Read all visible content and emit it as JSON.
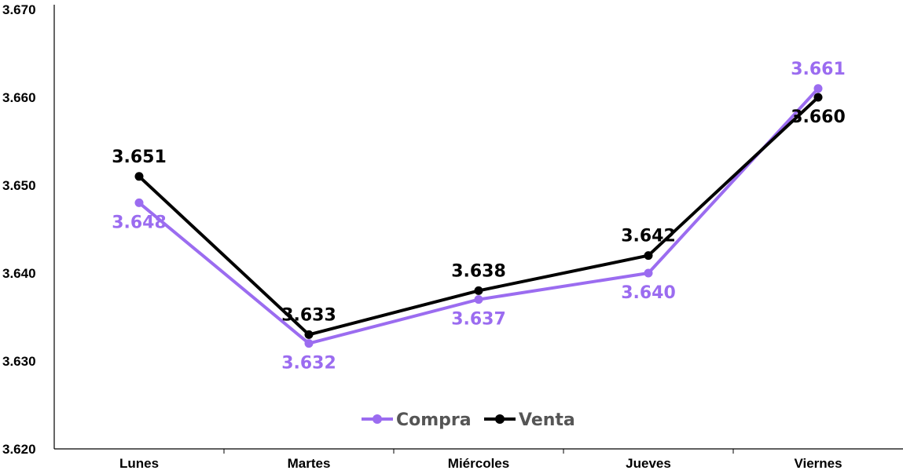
{
  "chart_data": {
    "type": "line",
    "categories": [
      "Lunes",
      "Martes",
      "Miércoles",
      "Jueves",
      "Viernes"
    ],
    "ylim": [
      3620,
      3670
    ],
    "yticks": [
      3620,
      3630,
      3640,
      3650,
      3660,
      3670
    ],
    "ytick_labels": [
      "3.620",
      "3.630",
      "3.640",
      "3.650",
      "3.660",
      "3.670"
    ],
    "grid": false,
    "legend_position": "bottom-center",
    "series": [
      {
        "name": "Compra",
        "color": "#9B6CF0",
        "values": [
          3648,
          3632,
          3637,
          3640,
          3661
        ],
        "labels": [
          "3.648",
          "3.632",
          "3.637",
          "3.640",
          "3.661"
        ],
        "label_positions": [
          "below",
          "below",
          "below",
          "below",
          "above"
        ]
      },
      {
        "name": "Venta",
        "color": "#000000",
        "values": [
          3651,
          3633,
          3638,
          3642,
          3660
        ],
        "labels": [
          "3.651",
          "3.633",
          "3.638",
          "3.642",
          "3.660"
        ],
        "label_positions": [
          "above",
          "above",
          "above",
          "above",
          "below"
        ]
      }
    ]
  }
}
